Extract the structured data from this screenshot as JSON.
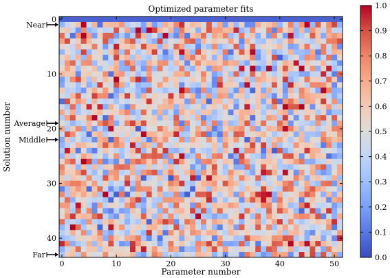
{
  "chart_data": {
    "type": "heatmap",
    "title": "Optimized parameter fits",
    "xlabel": "Parameter number",
    "ylabel": "Solution number",
    "n_cols": 52,
    "n_rows": 44,
    "x_ticks": [
      0,
      10,
      20,
      30,
      40,
      50
    ],
    "y_ticks": [
      0,
      10,
      20,
      30,
      40
    ],
    "colorbar": {
      "min": 0.0,
      "max": 1.0,
      "ticks": [
        "0.0",
        "0.1",
        "0.2",
        "0.3",
        "0.4",
        "0.5",
        "0.6",
        "0.7",
        "0.8",
        "0.9",
        "1.0"
      ],
      "colormap": "coolwarm",
      "stops": [
        "#3b4cc0",
        "#5977e3",
        "#7b9ff9",
        "#9ebeff",
        "#c0d4f5",
        "#dddcdc",
        "#f2cbb7",
        "#f7ac8e",
        "#ee8468",
        "#d65244",
        "#b40426"
      ]
    },
    "annotations": [
      {
        "label": "Near",
        "row": 1
      },
      {
        "label": "Average",
        "row": 19
      },
      {
        "label": "Middle",
        "row": 22
      },
      {
        "label": "Far",
        "row": 43
      }
    ],
    "row0_value": 0.05,
    "values_seed": 7919
  }
}
